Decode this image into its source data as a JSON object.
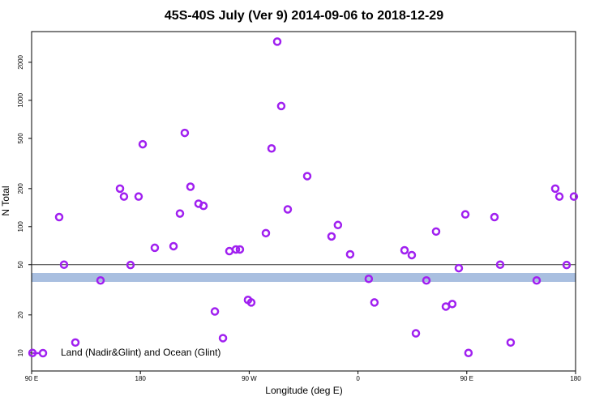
{
  "chart_data": {
    "type": "scatter",
    "title": "45S-40S July (Ver 9)   2014-09-06 to 2018-12-29",
    "x_label": "Longitude (deg E)",
    "y_label": "N Total",
    "log_y": true,
    "legend": "bottom-left",
    "reference_line": 50,
    "xlim": [
      90,
      540
    ],
    "ylim": [
      7.2,
      3500
    ],
    "xticks": [
      {
        "value": 90,
        "label": "90 E"
      },
      {
        "value": 180,
        "label": "180"
      },
      {
        "value": 270,
        "label": "90 W"
      },
      {
        "value": 360,
        "label": "0"
      },
      {
        "value": 450,
        "label": "90 E"
      },
      {
        "value": 540,
        "label": "180"
      }
    ],
    "yticks": [
      10,
      20,
      50,
      100,
      200,
      500,
      1000,
      2000
    ],
    "series": [
      {
        "name": "Land (Nadir&Glint) and Ocean (Glint)",
        "color": "#a020f0",
        "x": [
          90.7,
          112.8,
          116.8,
          126.2,
          147,
          163.1,
          166.4,
          171.8,
          178.5,
          181.9,
          191.9,
          207.4,
          212.7,
          216.7,
          221.4,
          228.1,
          232.2,
          241.6,
          248.3,
          253.6,
          259,
          262.3,
          269,
          271.7,
          283.8,
          288.5,
          293.2,
          296.5,
          301.9,
          318,
          338.1,
          343.4,
          353.5,
          368.9,
          373.6,
          398.5,
          404.5,
          407.9,
          416.6,
          424.6,
          432.7,
          438,
          443.4,
          448.8,
          451.4,
          472.9,
          477.6,
          486.3,
          507.8,
          523.2,
          526.6,
          532.6,
          538.6
        ],
        "values": [
          10,
          119,
          50,
          12.1,
          37.5,
          200,
          173,
          49.7,
          173,
          449,
          68,
          70,
          127,
          552,
          207,
          152,
          146,
          21.3,
          13.1,
          64,
          66,
          66,
          26.3,
          25.1,
          88.8,
          416,
          2915,
          901,
          137,
          251,
          83.7,
          103,
          60.4,
          38.6,
          25.1,
          65,
          59.5,
          14.3,
          37.5,
          91.5,
          23.3,
          24.4,
          46.9,
          125,
          10,
          119,
          50,
          12.1,
          37.5,
          200,
          173,
          49.7,
          173
        ]
      }
    ]
  }
}
